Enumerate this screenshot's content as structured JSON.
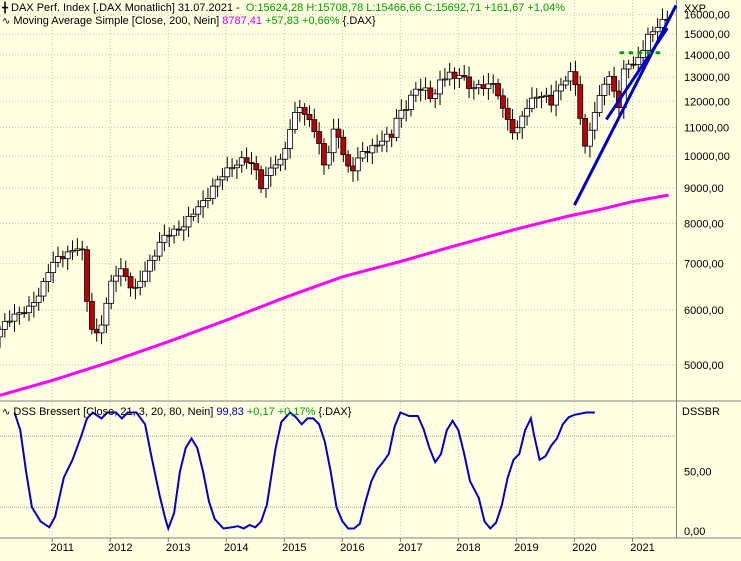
{
  "chart_data": [
    {
      "type": "candlestick",
      "legend_lines": [
        {
          "icon": "candle-icon",
          "parts": [
            {
              "text": "DAX Perf. Index [.DAX  Monatlich] 31.07.2021 - ",
              "color": "black"
            },
            {
              "text": "O:15624,28 H:15708,78 L:15466,66 C:15692,71 +161,67 +1,04%",
              "color": "green"
            }
          ]
        },
        {
          "icon": "line-icon",
          "parts": [
            {
              "text": "Moving Average Simple [Close, 200, Nein]",
              "color": "black"
            },
            {
              "text": "8787,41",
              "color": "magenta"
            },
            {
              "text": "+57,83 +0,66%",
              "color": "green"
            },
            {
              "text": "{.DAX}",
              "color": "black"
            }
          ]
        }
      ],
      "y_axis_label": "XXP",
      "y_ticks": [
        "16000,00",
        "15000,00",
        "14000,00",
        "13000,00",
        "12000,00",
        "11000,00",
        "10000,00",
        "9000,00",
        "8000,00",
        "7000,00",
        "6000,00",
        "5000,00"
      ],
      "y_tick_values": [
        16000,
        15000,
        14000,
        13000,
        12000,
        11000,
        10000,
        9000,
        8000,
        7000,
        6000,
        5000
      ],
      "scale": "log",
      "ylim": [
        4450,
        16800
      ],
      "x_ticks": [
        "2011",
        "2012",
        "2013",
        "2014",
        "2015",
        "2016",
        "2017",
        "2018",
        "2019",
        "2020",
        "2021"
      ],
      "xlim": [
        2010.1,
        2021.75
      ],
      "grid": true,
      "series": [
        {
          "kind": "monthly-candles",
          "color_up": "#ffffff",
          "color_down": "#c00000",
          "closes": [
            [
              2010.1,
              5600
            ],
            [
              2010.3,
              5900
            ],
            [
              2010.6,
              6000
            ],
            [
              2010.8,
              6400
            ],
            [
              2010.95,
              6900
            ],
            [
              2011.1,
              7100
            ],
            [
              2011.3,
              7300
            ],
            [
              2011.45,
              7400
            ],
            [
              2011.55,
              7150
            ],
            [
              2011.62,
              5800
            ],
            [
              2011.75,
              5500
            ],
            [
              2011.9,
              5900
            ],
            [
              2012.0,
              6500
            ],
            [
              2012.15,
              6900
            ],
            [
              2012.3,
              6700
            ],
            [
              2012.4,
              6300
            ],
            [
              2012.55,
              6700
            ],
            [
              2012.7,
              7100
            ],
            [
              2012.9,
              7600
            ],
            [
              2013.1,
              7800
            ],
            [
              2013.3,
              8000
            ],
            [
              2013.45,
              8300
            ],
            [
              2013.6,
              8600
            ],
            [
              2013.8,
              9100
            ],
            [
              2013.95,
              9400
            ],
            [
              2014.1,
              9700
            ],
            [
              2014.3,
              9900
            ],
            [
              2014.5,
              9600
            ],
            [
              2014.6,
              9100
            ],
            [
              2014.8,
              9700
            ],
            [
              2014.95,
              9800
            ],
            [
              2015.1,
              11000
            ],
            [
              2015.25,
              11900
            ],
            [
              2015.35,
              11400
            ],
            [
              2015.5,
              11100
            ],
            [
              2015.6,
              10400
            ],
            [
              2015.7,
              9600
            ],
            [
              2015.85,
              10800
            ],
            [
              2015.95,
              10700
            ],
            [
              2016.05,
              9800
            ],
            [
              2016.15,
              9500
            ],
            [
              2016.35,
              10100
            ],
            [
              2016.5,
              10300
            ],
            [
              2016.65,
              10500
            ],
            [
              2016.85,
              10700
            ],
            [
              2016.95,
              11500
            ],
            [
              2017.1,
              11800
            ],
            [
              2017.25,
              12400
            ],
            [
              2017.4,
              12600
            ],
            [
              2017.55,
              12100
            ],
            [
              2017.7,
              12800
            ],
            [
              2017.85,
              13200
            ],
            [
              2017.95,
              12900
            ],
            [
              2018.05,
              13400
            ],
            [
              2018.15,
              12400
            ],
            [
              2018.25,
              12600
            ],
            [
              2018.4,
              12600
            ],
            [
              2018.55,
              12800
            ],
            [
              2018.7,
              12200
            ],
            [
              2018.8,
              11400
            ],
            [
              2018.9,
              11200
            ],
            [
              2018.98,
              10600
            ],
            [
              2019.05,
              11200
            ],
            [
              2019.2,
              11800
            ],
            [
              2019.35,
              12300
            ],
            [
              2019.5,
              12200
            ],
            [
              2019.6,
              11900
            ],
            [
              2019.7,
              12400
            ],
            [
              2019.85,
              13000
            ],
            [
              2019.95,
              13200
            ],
            [
              2020.0,
              12900
            ],
            [
              2020.08,
              11900
            ],
            [
              2020.15,
              9900
            ],
            [
              2020.25,
              10900
            ],
            [
              2020.35,
              11600
            ],
            [
              2020.45,
              12300
            ],
            [
              2020.55,
              13000
            ],
            [
              2020.65,
              12800
            ],
            [
              2020.75,
              11600
            ],
            [
              2020.85,
              13300
            ],
            [
              2020.95,
              13700
            ],
            [
              2021.05,
              13450
            ],
            [
              2021.15,
              14000
            ],
            [
              2021.25,
              15000
            ],
            [
              2021.35,
              15100
            ],
            [
              2021.45,
              15500
            ],
            [
              2021.55,
              15600
            ],
            [
              2021.62,
              15693
            ]
          ]
        },
        {
          "kind": "line",
          "color": "#ff00ff",
          "points": [
            [
              2010.1,
              4520
            ],
            [
              2011.0,
              4750
            ],
            [
              2012.0,
              5050
            ],
            [
              2013.0,
              5400
            ],
            [
              2014.0,
              5800
            ],
            [
              2015.0,
              6250
            ],
            [
              2016.0,
              6700
            ],
            [
              2017.0,
              7050
            ],
            [
              2018.0,
              7450
            ],
            [
              2019.0,
              7850
            ],
            [
              2019.9,
              8200
            ],
            [
              2020.5,
              8400
            ],
            [
              2021.0,
              8600
            ],
            [
              2021.62,
              8787
            ]
          ]
        },
        {
          "kind": "trendline",
          "color": "#0000cc",
          "points": [
            [
              2020.0,
              8500
            ],
            [
              2021.75,
              16500
            ]
          ]
        },
        {
          "kind": "trendline",
          "color": "#0000cc",
          "points": [
            [
              2020.55,
              11300
            ],
            [
              2021.6,
              15300
            ]
          ]
        },
        {
          "kind": "dotted-level",
          "color": "#00a000",
          "points": [
            [
              2020.8,
              14100
            ],
            [
              2021.5,
              14100
            ]
          ]
        }
      ]
    },
    {
      "type": "line",
      "legend_lines": [
        {
          "icon": "line-icon",
          "parts": [
            {
              "text": "DSS Bressert [Close, 21, 3, 20, 80, Nein]",
              "color": "black"
            },
            {
              "text": "99,83",
              "color": "blue"
            },
            {
              "text": "+0,17 +0,17%",
              "color": "green"
            },
            {
              "text": "{.DAX}",
              "color": "black"
            }
          ]
        }
      ],
      "y_axis_label": "DSSBR",
      "y_ticks": [
        "50,00",
        "0,00"
      ],
      "y_tick_values": [
        50,
        0
      ],
      "ylim": [
        -6,
        108
      ],
      "reference_lines": [
        80,
        20
      ],
      "xlim": [
        2010.1,
        2021.75
      ],
      "series": [
        {
          "kind": "line",
          "color": "#0000cc",
          "points": [
            [
              2010.35,
              100
            ],
            [
              2010.45,
              85
            ],
            [
              2010.55,
              50
            ],
            [
              2010.65,
              20
            ],
            [
              2010.8,
              8
            ],
            [
              2010.95,
              3
            ],
            [
              2011.05,
              12
            ],
            [
              2011.2,
              45
            ],
            [
              2011.35,
              60
            ],
            [
              2011.5,
              80
            ],
            [
              2011.6,
              95
            ],
            [
              2011.7,
              100
            ],
            [
              2011.85,
              95
            ],
            [
              2011.95,
              100
            ],
            [
              2012.1,
              100
            ],
            [
              2012.2,
              95
            ],
            [
              2012.3,
              100
            ],
            [
              2012.45,
              100
            ],
            [
              2012.6,
              90
            ],
            [
              2012.7,
              65
            ],
            [
              2012.85,
              30
            ],
            [
              2012.95,
              10
            ],
            [
              2013.0,
              2
            ],
            [
              2013.1,
              15
            ],
            [
              2013.2,
              50
            ],
            [
              2013.3,
              70
            ],
            [
              2013.4,
              78
            ],
            [
              2013.5,
              70
            ],
            [
              2013.6,
              50
            ],
            [
              2013.7,
              25
            ],
            [
              2013.8,
              10
            ],
            [
              2013.95,
              2
            ],
            [
              2014.1,
              3
            ],
            [
              2014.2,
              4
            ],
            [
              2014.3,
              2
            ],
            [
              2014.4,
              5
            ],
            [
              2014.5,
              3
            ],
            [
              2014.6,
              8
            ],
            [
              2014.7,
              22
            ],
            [
              2014.85,
              70
            ],
            [
              2014.95,
              92
            ],
            [
              2015.1,
              100
            ],
            [
              2015.2,
              96
            ],
            [
              2015.3,
              90
            ],
            [
              2015.4,
              95
            ],
            [
              2015.5,
              95
            ],
            [
              2015.6,
              90
            ],
            [
              2015.7,
              75
            ],
            [
              2015.8,
              50
            ],
            [
              2015.9,
              20
            ],
            [
              2016.0,
              8
            ],
            [
              2016.1,
              2
            ],
            [
              2016.2,
              2
            ],
            [
              2016.3,
              6
            ],
            [
              2016.4,
              25
            ],
            [
              2016.5,
              42
            ],
            [
              2016.6,
              52
            ],
            [
              2016.7,
              58
            ],
            [
              2016.8,
              65
            ],
            [
              2016.9,
              88
            ],
            [
              2017.0,
              100
            ],
            [
              2017.15,
              97
            ],
            [
              2017.3,
              97
            ],
            [
              2017.4,
              86
            ],
            [
              2017.5,
              70
            ],
            [
              2017.6,
              58
            ],
            [
              2017.7,
              65
            ],
            [
              2017.8,
              85
            ],
            [
              2017.9,
              93
            ],
            [
              2018.0,
              85
            ],
            [
              2018.1,
              65
            ],
            [
              2018.2,
              42
            ],
            [
              2018.35,
              28
            ],
            [
              2018.45,
              8
            ],
            [
              2018.55,
              2
            ],
            [
              2018.65,
              7
            ],
            [
              2018.75,
              22
            ],
            [
              2018.85,
              45
            ],
            [
              2018.95,
              60
            ],
            [
              2019.05,
              65
            ],
            [
              2019.15,
              85
            ],
            [
              2019.25,
              95
            ],
            [
              2019.3,
              82
            ],
            [
              2019.4,
              60
            ],
            [
              2019.5,
              63
            ],
            [
              2019.6,
              72
            ],
            [
              2019.7,
              78
            ],
            [
              2019.8,
              90
            ],
            [
              2019.9,
              96
            ],
            [
              2020.0,
              98
            ],
            [
              2020.1,
              99
            ],
            [
              2020.2,
              100
            ],
            [
              2020.35,
              100
            ]
          ]
        }
      ]
    }
  ]
}
